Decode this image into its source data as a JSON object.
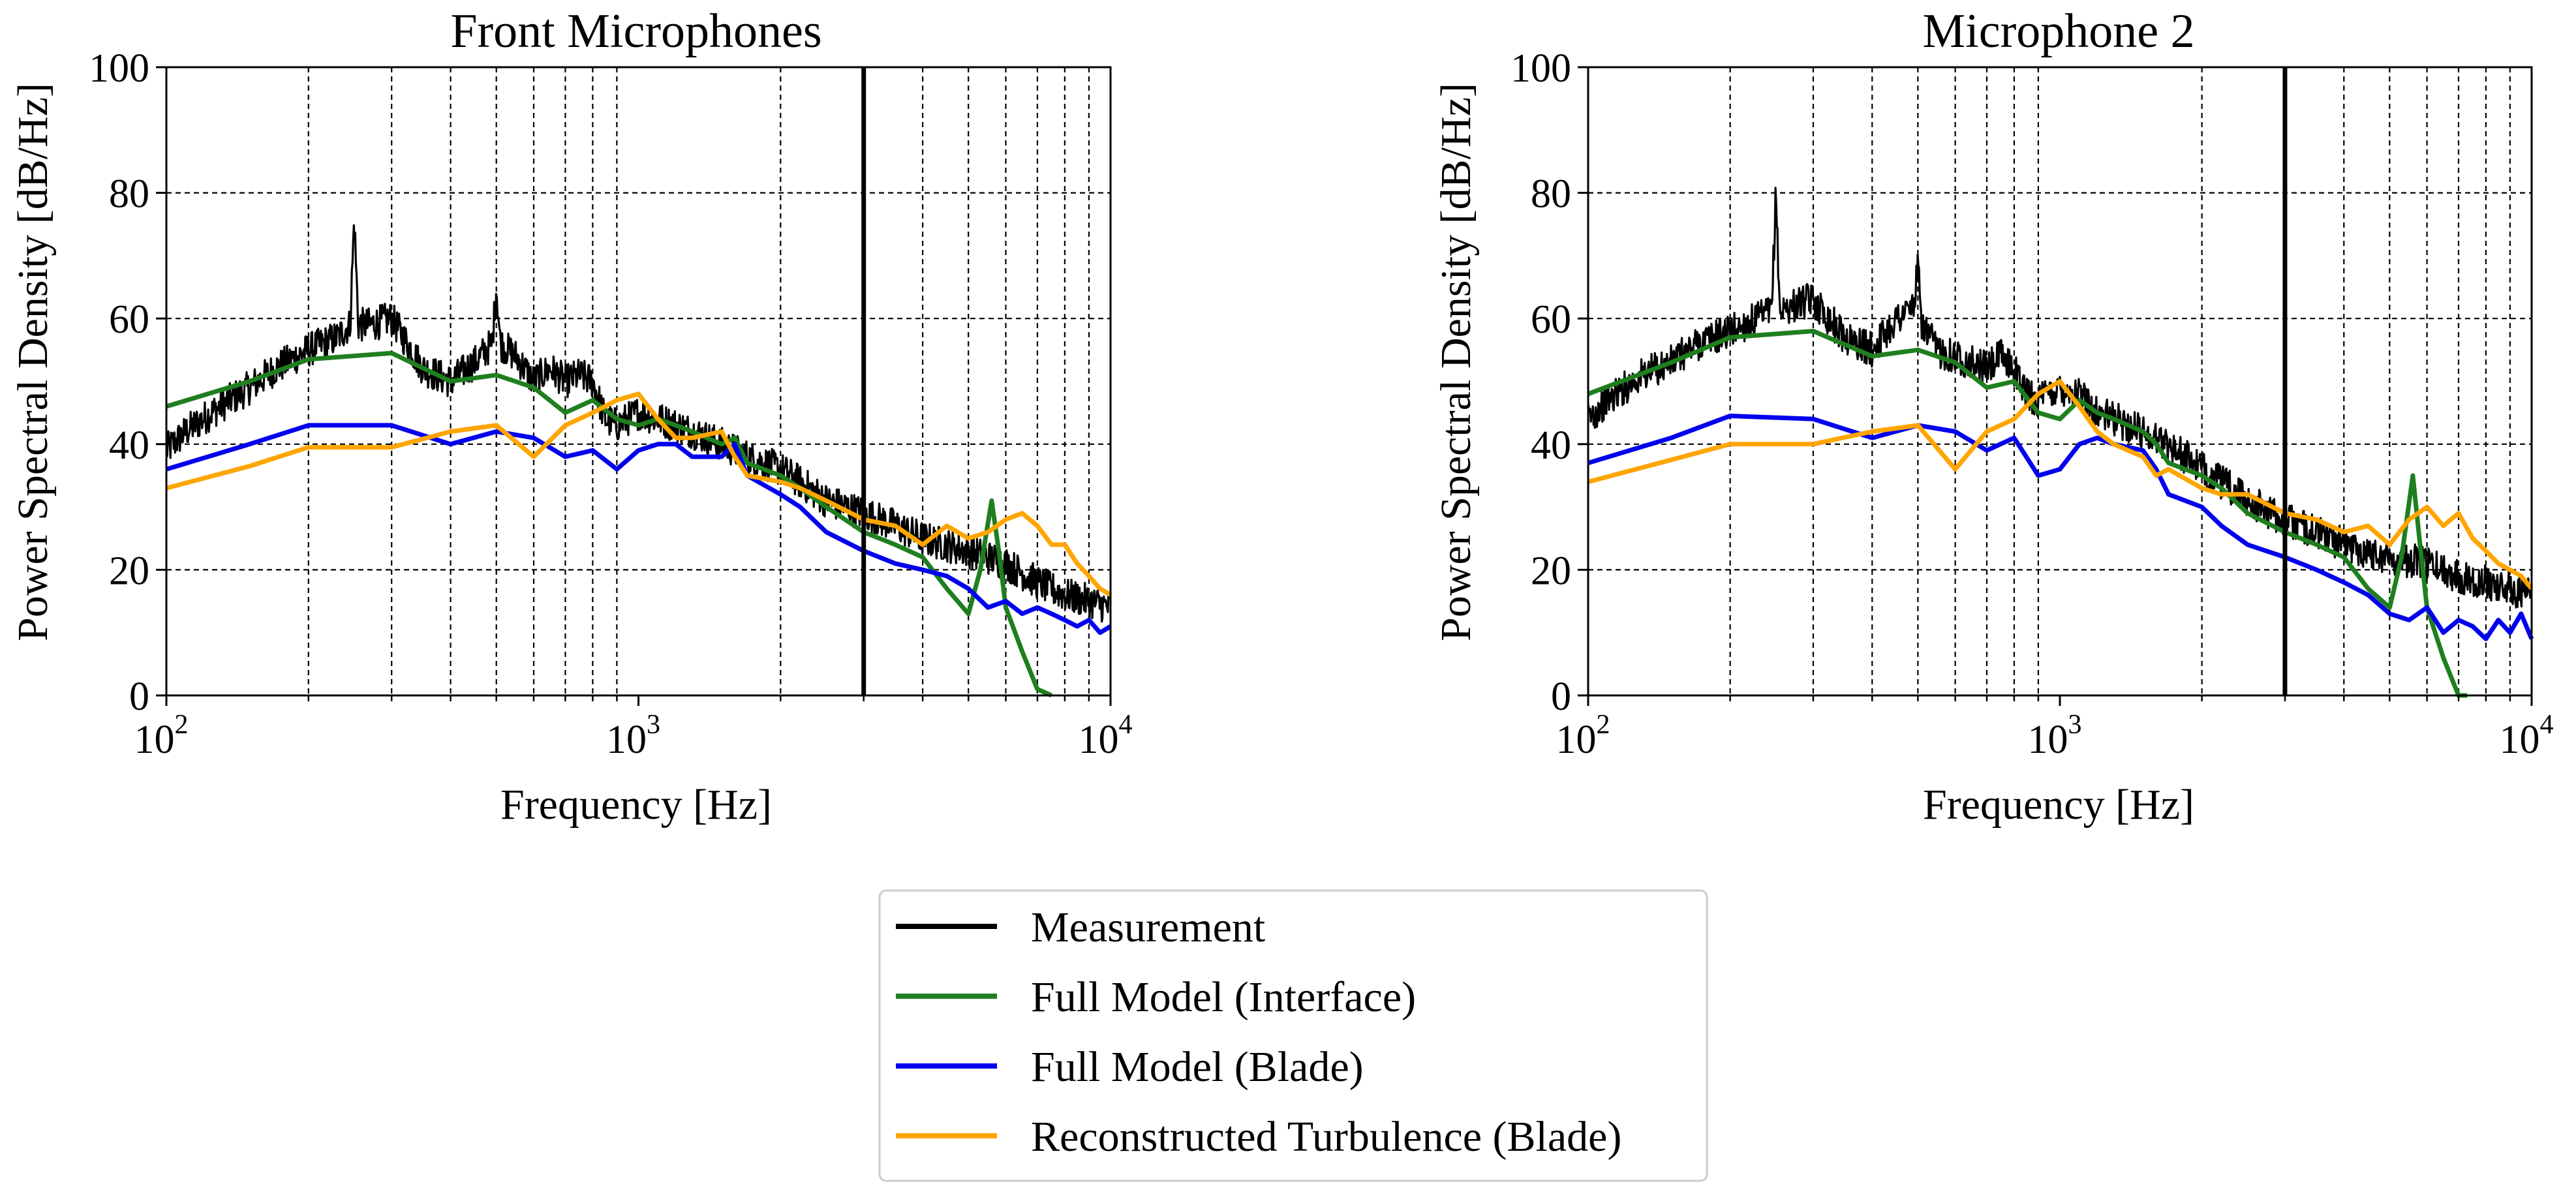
{
  "chart_data": [
    {
      "type": "line",
      "title": "Front Microphones",
      "xlabel": "Frequency [Hz]",
      "ylabel": "Power Spectral Density [dB/Hz]",
      "xscale": "log",
      "xlim": [
        100,
        10000
      ],
      "ylim": [
        0,
        100
      ],
      "yticks": [
        "0",
        "20",
        "40",
        "60",
        "80",
        "100"
      ],
      "xticks": [
        {
          "base": "10",
          "exp": "2"
        },
        {
          "base": "10",
          "exp": "3"
        },
        {
          "base": "10",
          "exp": "4"
        }
      ],
      "grid": true,
      "vline_x": 3000,
      "series": [
        {
          "name": "Measurement",
          "color": "#000000",
          "noisy": true,
          "x": [
            100,
            110,
            130,
            150,
            170,
            200,
            230,
            245,
            250,
            255,
            270,
            300,
            350,
            400,
            450,
            490,
            500,
            510,
            550,
            600,
            650,
            700,
            750,
            800,
            850,
            900,
            1000,
            1100,
            1200,
            1300,
            1500,
            1700,
            2000,
            2200,
            2500,
            3000,
            3500,
            4000,
            5000,
            6000,
            7000,
            8000,
            9000,
            10000
          ],
          "y": [
            39,
            42,
            46,
            49,
            52,
            55,
            57,
            59,
            76,
            59,
            59,
            60,
            52,
            50,
            53,
            56,
            65,
            56,
            54,
            50,
            52,
            50,
            51,
            50,
            44,
            43,
            45,
            44,
            43,
            42,
            40,
            38,
            36,
            34,
            31,
            29,
            27,
            25,
            23,
            21,
            18,
            16,
            15,
            14
          ]
        },
        {
          "name": "Full Model (Interface)",
          "color": "#1f7f1f",
          "noisy": false,
          "x": [
            100,
            150,
            200,
            300,
            400,
            500,
            600,
            700,
            800,
            900,
            1000,
            1100,
            1200,
            1300,
            1500,
            1600,
            1700,
            2000,
            2200,
            2500,
            3000,
            3500,
            4000,
            4500,
            5000,
            5300,
            5600,
            5800,
            6000,
            6500,
            7000,
            7500
          ],
          "y": [
            46,
            50,
            53.5,
            54.5,
            50,
            51,
            49,
            45,
            47,
            44,
            43,
            44,
            43,
            42,
            40,
            41,
            37,
            35,
            33,
            30,
            26,
            24,
            22,
            17,
            13,
            20,
            31,
            23,
            14,
            7,
            1,
            0
          ]
        },
        {
          "name": "Full Model (Blade)",
          "color": "#0000ee",
          "noisy": false,
          "x": [
            100,
            150,
            200,
            300,
            400,
            500,
            600,
            700,
            800,
            900,
            1000,
            1100,
            1200,
            1300,
            1500,
            1600,
            1700,
            2000,
            2200,
            2500,
            3000,
            3500,
            4000,
            4500,
            5000,
            5500,
            6000,
            6500,
            7000,
            7500,
            8000,
            8500,
            9000,
            9500,
            10000
          ],
          "y": [
            36,
            40,
            43,
            43,
            40,
            42,
            41,
            38,
            39,
            36,
            39,
            40,
            40,
            38,
            38,
            40,
            35,
            32,
            30,
            26,
            23,
            21,
            20,
            19,
            17,
            14,
            15,
            13,
            14,
            13,
            12,
            11,
            12,
            10,
            11
          ]
        },
        {
          "name": "Reconstructed Turbulence (Blade)",
          "color": "#ffa500",
          "noisy": false,
          "x": [
            100,
            150,
            200,
            300,
            400,
            500,
            600,
            700,
            800,
            900,
            1000,
            1100,
            1200,
            1300,
            1500,
            1600,
            1700,
            2000,
            2200,
            2500,
            3000,
            3500,
            4000,
            4500,
            5000,
            5500,
            6000,
            6500,
            7000,
            7500,
            8000,
            8500,
            9000,
            9500,
            10000
          ],
          "y": [
            33,
            36.5,
            39.5,
            39.5,
            42,
            43,
            38,
            43,
            45,
            47,
            48,
            44,
            41,
            41,
            42,
            38,
            35,
            34,
            33,
            31,
            28,
            27,
            24,
            27,
            25,
            26,
            28,
            29,
            27,
            24,
            24,
            21,
            19,
            17,
            16
          ]
        }
      ]
    },
    {
      "type": "line",
      "title": "Microphone 2",
      "xlabel": "Frequency [Hz]",
      "ylabel": "Power Spectral Density [dB/Hz]",
      "xscale": "log",
      "xlim": [
        100,
        10000
      ],
      "ylim": [
        0,
        100
      ],
      "yticks": [
        "0",
        "20",
        "40",
        "60",
        "80",
        "100"
      ],
      "xticks": [
        {
          "base": "10",
          "exp": "2"
        },
        {
          "base": "10",
          "exp": "3"
        },
        {
          "base": "10",
          "exp": "4"
        }
      ],
      "grid": true,
      "vline_x": 3000,
      "series": [
        {
          "name": "Measurement",
          "color": "#000000",
          "noisy": true,
          "x": [
            100,
            110,
            130,
            150,
            170,
            200,
            230,
            245,
            250,
            255,
            270,
            300,
            350,
            400,
            450,
            490,
            500,
            510,
            550,
            600,
            650,
            700,
            750,
            800,
            850,
            900,
            1000,
            1100,
            1200,
            1300,
            1500,
            1700,
            2000,
            2200,
            2500,
            3000,
            3500,
            4000,
            5000,
            6000,
            7000,
            8000,
            9000,
            10000
          ],
          "y": [
            44,
            47,
            51,
            53,
            56,
            58,
            60,
            61,
            80,
            61,
            62,
            63,
            57,
            55,
            60,
            62,
            68,
            59,
            55,
            54,
            53,
            52,
            54,
            52,
            48,
            47,
            49,
            48,
            45,
            44,
            42,
            40,
            36,
            34,
            31,
            28,
            26,
            24,
            22,
            21,
            19,
            18,
            17,
            16
          ]
        },
        {
          "name": "Full Model (Interface)",
          "color": "#1f7f1f",
          "noisy": false,
          "x": [
            100,
            150,
            200,
            300,
            400,
            500,
            600,
            700,
            800,
            900,
            1000,
            1100,
            1200,
            1300,
            1500,
            1600,
            1700,
            2000,
            2200,
            2500,
            3000,
            3500,
            4000,
            4500,
            5000,
            5300,
            5600,
            5800,
            6000,
            6500,
            7000,
            7300
          ],
          "y": [
            48,
            53,
            57,
            58,
            54,
            55,
            53,
            49,
            50,
            45,
            44,
            47,
            45,
            44,
            42,
            40,
            37,
            35,
            33,
            29,
            26,
            24,
            22,
            17,
            14,
            22,
            35,
            24,
            14,
            6,
            0,
            0
          ]
        },
        {
          "name": "Full Model (Blade)",
          "color": "#0000ee",
          "noisy": false,
          "x": [
            100,
            150,
            200,
            300,
            400,
            500,
            600,
            700,
            800,
            900,
            1000,
            1100,
            1200,
            1300,
            1500,
            1600,
            1700,
            2000,
            2200,
            2500,
            3000,
            3500,
            4000,
            4500,
            5000,
            5500,
            6000,
            6500,
            7000,
            7500,
            8000,
            8500,
            9000,
            9500,
            10000
          ],
          "y": [
            37,
            41,
            44.5,
            44,
            41,
            43,
            42,
            39,
            41,
            35,
            36,
            40,
            41,
            40,
            39,
            36,
            32,
            30,
            27,
            24,
            22,
            20,
            18,
            16,
            13,
            12,
            14,
            10,
            12,
            11,
            9,
            12,
            10,
            13,
            9
          ]
        },
        {
          "name": "Reconstructed Turbulence (Blade)",
          "color": "#ffa500",
          "noisy": false,
          "x": [
            100,
            150,
            200,
            300,
            400,
            500,
            600,
            700,
            800,
            900,
            1000,
            1100,
            1200,
            1300,
            1500,
            1600,
            1700,
            2000,
            2200,
            2500,
            3000,
            3500,
            4000,
            4500,
            5000,
            5500,
            6000,
            6500,
            7000,
            7500,
            8000,
            8500,
            9000,
            9500,
            10000
          ],
          "y": [
            34,
            37.5,
            40,
            40,
            42,
            43,
            36,
            42,
            44,
            48,
            50,
            46,
            42,
            40,
            38,
            35,
            36,
            33,
            32,
            32,
            29,
            28,
            26,
            27,
            24,
            28,
            30,
            27,
            29,
            25,
            23,
            21,
            20,
            19,
            17
          ]
        }
      ]
    }
  ],
  "legend": {
    "placement": "bottom-center",
    "entries": [
      {
        "label": "Measurement",
        "color": "#000000"
      },
      {
        "label": "Full Model (Interface)",
        "color": "#1f7f1f"
      },
      {
        "label": "Full Model (Blade)",
        "color": "#0000ee"
      },
      {
        "label": "Reconstructed Turbulence (Blade)",
        "color": "#ffa500"
      }
    ]
  }
}
